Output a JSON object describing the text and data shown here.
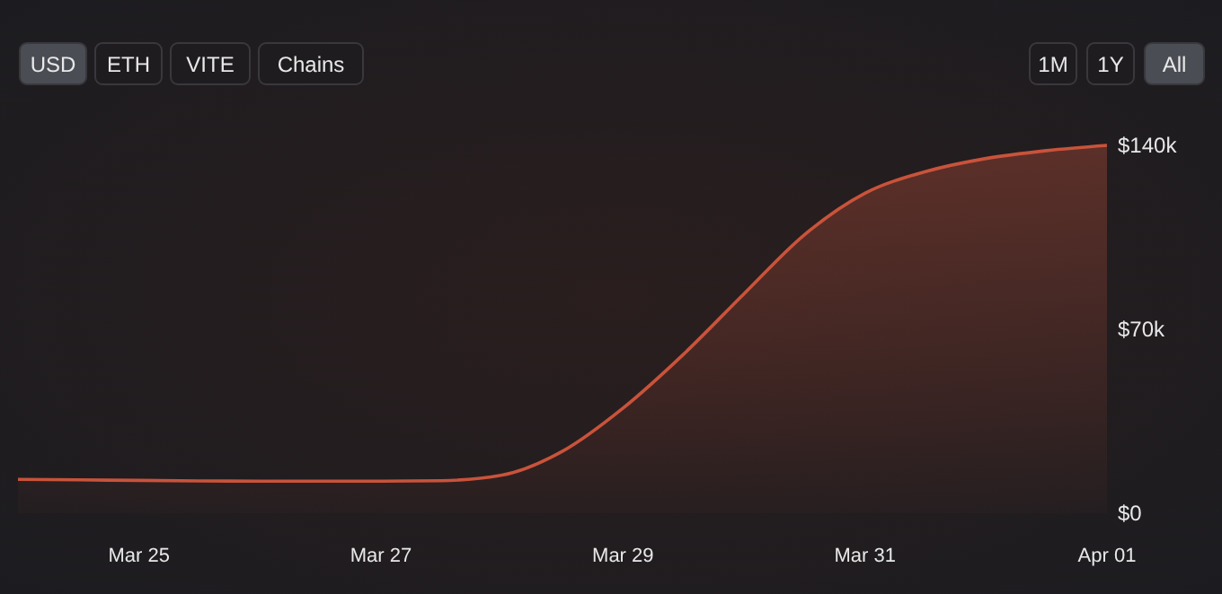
{
  "chart_data": {
    "type": "area",
    "annotations": [
      "USD",
      "ETH",
      "VITE",
      "Chains",
      "1M",
      "1Y",
      "All"
    ],
    "categories": [
      null,
      null,
      "Mar 25",
      null,
      null,
      null,
      "Mar 27",
      null,
      null,
      null,
      "Mar 29",
      null,
      null,
      null,
      "Mar 31",
      null,
      null,
      null,
      "Apr 01"
    ],
    "series": [
      {
        "color": "#c9533b",
        "values": [
          12900,
          12700,
          12500,
          12300,
          12200,
          12200,
          12200,
          12400,
          14500,
          23600,
          40000,
          60500,
          83500,
          106000,
          121800,
          130000,
          135000,
          138000,
          140000
        ]
      }
    ],
    "ylim": [
      0,
      140000
    ],
    "yticks": [
      {
        "value": 0,
        "label": "$0"
      },
      {
        "value": 70000,
        "label": "$70k"
      },
      {
        "value": 140000,
        "label": "$140k"
      }
    ],
    "grid": false
  }
}
